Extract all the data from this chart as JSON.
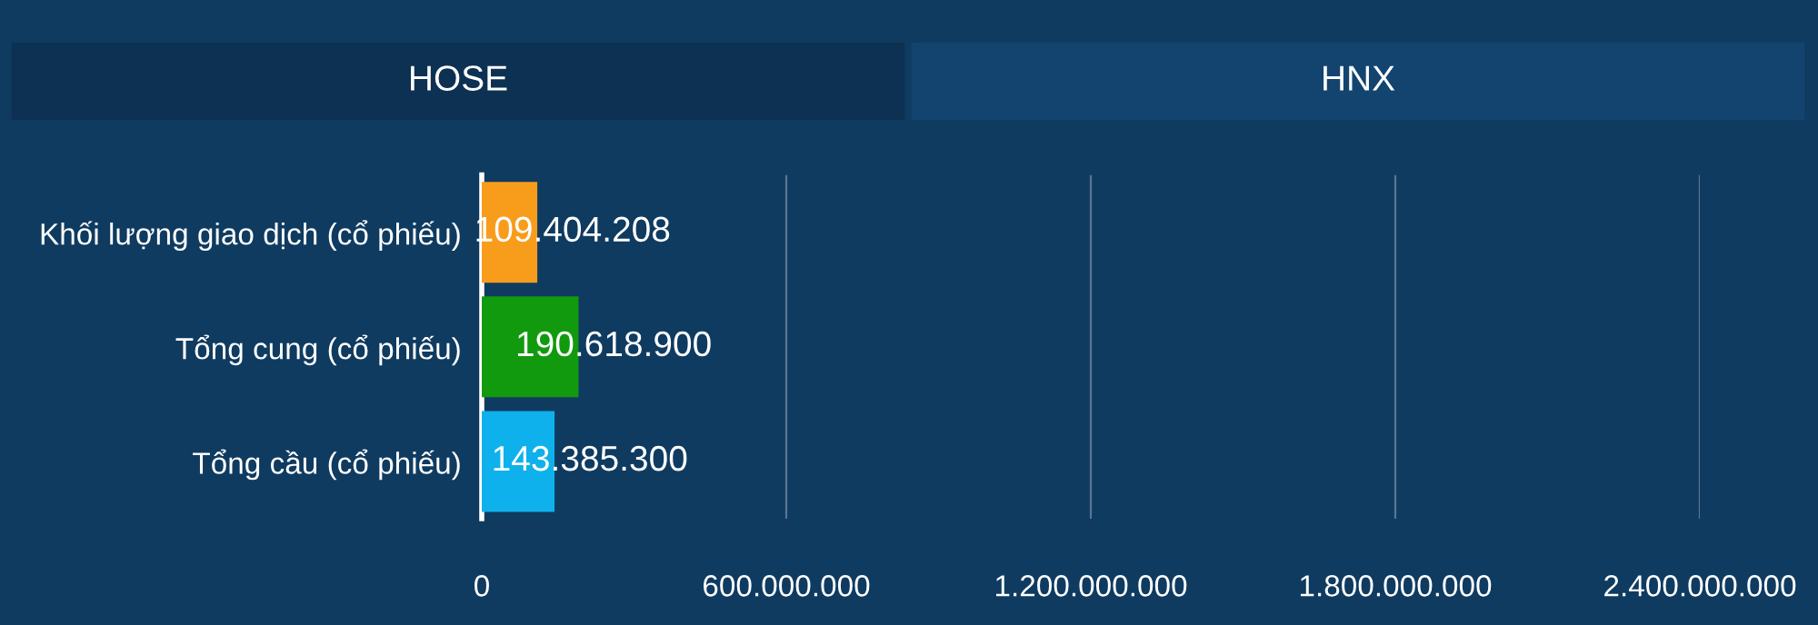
{
  "chart_data": {
    "type": "bar",
    "orientation": "horizontal",
    "annotations": [
      "HOSE",
      "HNX"
    ],
    "categories": [
      "Khối lượng giao dịch (cổ phiếu)",
      "Tổng cung (cổ phiếu)",
      "Tổng cầu (cổ phiếu)"
    ],
    "values": [
      109404208,
      190618900,
      143385300
    ],
    "colors": [
      "#f89c1c",
      "#119a0e",
      "#0eb1eb"
    ],
    "value_labels": [
      "109.404.208",
      "190.618.900",
      "143.385.300"
    ],
    "xlim": [
      0,
      2400000000
    ],
    "xticks": [
      0,
      {
        "value": 600000000,
        "label": "600.000.000"
      },
      {
        "value": 1200000000,
        "label": "1.200.000.000"
      },
      {
        "value": 1800000000,
        "label": "1.800.000.000"
      },
      {
        "value": 2400000000,
        "label": "2.400.000.000"
      }
    ],
    "grid": "x",
    "legend": false
  }
}
